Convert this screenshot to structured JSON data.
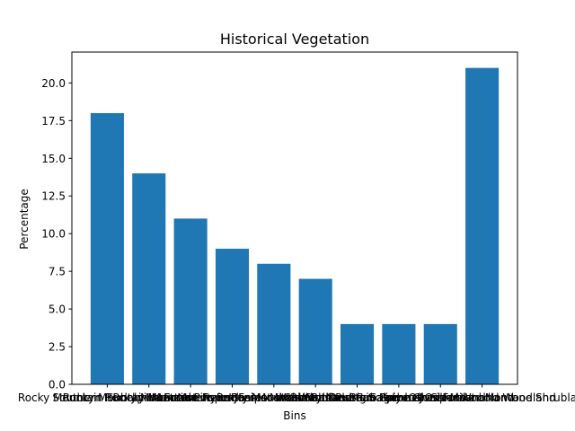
{
  "chart_data": {
    "type": "bar",
    "title": "Historical Vegetation",
    "xlabel": "Bins",
    "ylabel": "Percentage",
    "categories": [
      "Rocky Mountain Subalpine Forest",
      "Rocky Mountain Montane Forest",
      "Southern Rocky Mountain Pinyon-Juniper Woodland",
      "Rocky Mountain Aspen Forest and Woodland",
      "Inter-Mountain Basins Mixed Salt Desert Scrub",
      "Southern Rocky Mountain Montane-Subalpine Grassland",
      "Inter-Mountain Basins Big Sagebrush Shrubland",
      "Colorado Plateau Pinyon-Juniper Woodland",
      "Rocky Mountain Gambel Oak-Mixed Montane Shrubland",
      "Other Forest and Woodland"
    ],
    "values": [
      18,
      14,
      11,
      9,
      8,
      7,
      4,
      4,
      4,
      21
    ],
    "ylim": [
      0,
      22.05
    ],
    "yticks": [
      "0.0",
      "2.5",
      "5.0",
      "7.5",
      "10.0",
      "12.5",
      "15.0",
      "17.5",
      "20.0"
    ],
    "bar_color": "#1f77b4",
    "grid": false,
    "legend": "none"
  }
}
